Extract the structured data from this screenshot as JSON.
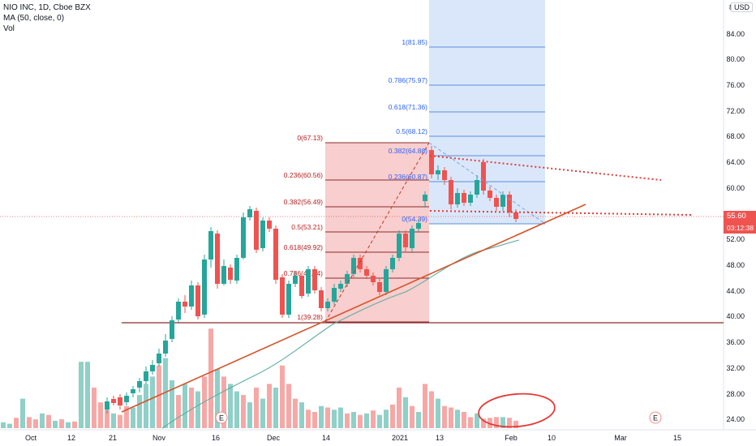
{
  "legend": {
    "title": "NIO INC, 1D, Cboe BZX",
    "ma": "MA (50, close, 0)",
    "vol": "Vol"
  },
  "price_axis": {
    "ticks": [
      "84.00",
      "80.00",
      "76.00",
      "72.00",
      "68.00",
      "64.00",
      "60.00",
      "56.00",
      "52.00",
      "48.00",
      "44.00",
      "40.00",
      "36.00",
      "32.00",
      "28.00",
      "24.00"
    ],
    "top_tick": "8",
    "currency": "USD",
    "last_price": "55.60",
    "countdown": "03:12:38"
  },
  "time_axis": {
    "labels": [
      "Oct",
      "12",
      "21",
      "Nov",
      "16",
      "Dec",
      "14",
      "2021",
      "13",
      "Feb",
      "10",
      "Mar",
      "15"
    ]
  },
  "fib_retracement": [
    {
      "label": "0(67.13)"
    },
    {
      "label": "0.236(60.56)"
    },
    {
      "label": "0.382(56.49)"
    },
    {
      "label": "0.5(53.21)"
    },
    {
      "label": "0.618(49.92)"
    },
    {
      "label": "0.786(45.24)"
    },
    {
      "label": "1(39.28)"
    }
  ],
  "fib_extension": [
    {
      "label": "1(81.85)"
    },
    {
      "label": "0.786(75.97)"
    },
    {
      "label": "0.618(71.36)"
    },
    {
      "label": "0.5(68.12)"
    },
    {
      "label": "0.382(64.88)"
    },
    {
      "label": "0.236(60.87)"
    },
    {
      "label": "0(54.39)"
    }
  ],
  "earnings_markers": [
    "E",
    "E"
  ],
  "colors": {
    "up": "#26a69a",
    "down": "#ef5350",
    "ma": "#5fad9f",
    "trend": "#d3542c",
    "fib_fill": "#f7c6c6",
    "ext_fill": "#d6e4fa",
    "ext_line": "#5b8fdc",
    "fib_line": "#8b2c2c"
  }
}
